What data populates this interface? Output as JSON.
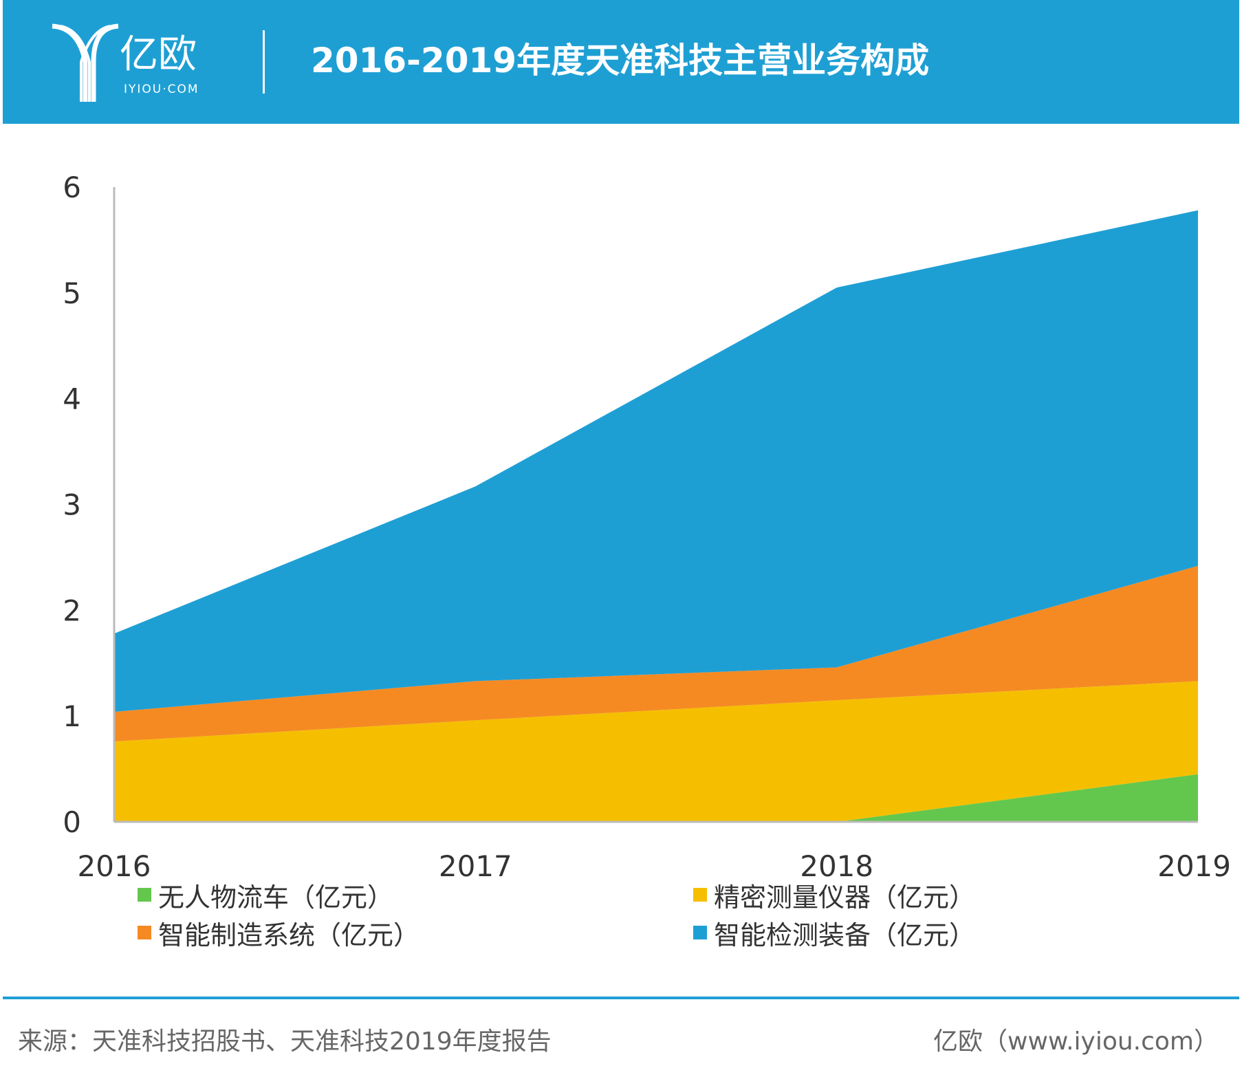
{
  "header": {
    "brand": "亿欧",
    "brand_sub": "IYIOU·COM",
    "title": "2016-2019年度天准科技主营业务构成"
  },
  "chart_data": {
    "type": "area",
    "stacked": true,
    "title": "2016-2019年度天准科技主营业务构成",
    "xlabel": "",
    "ylabel": "",
    "categories": [
      "2016",
      "2017",
      "2018",
      "2019"
    ],
    "y_ticks": [
      "0",
      "1",
      "2",
      "3",
      "4",
      "5",
      "6"
    ],
    "ylim": [
      0,
      6
    ],
    "grid": false,
    "legend_position": "bottom",
    "series": [
      {
        "name": "无人物流车（亿元）",
        "values": [
          0,
          0,
          0,
          0.45
        ],
        "color": "#63c74d"
      },
      {
        "name": "精密测量仪器（亿元）",
        "values": [
          0.76,
          0.96,
          1.15,
          0.88
        ],
        "color": "#f5bf00"
      },
      {
        "name": "智能制造系统（亿元）",
        "values": [
          0.28,
          0.37,
          0.31,
          1.09
        ],
        "color": "#f58a23"
      },
      {
        "name": "智能检测装备（亿元）",
        "values": [
          0.74,
          1.84,
          3.59,
          3.36
        ],
        "color": "#1e9fd4"
      }
    ]
  },
  "footer": {
    "source": "来源：天准科技招股书、天准科技2019年度报告",
    "credit": "亿欧（www.iyiou.com）"
  }
}
